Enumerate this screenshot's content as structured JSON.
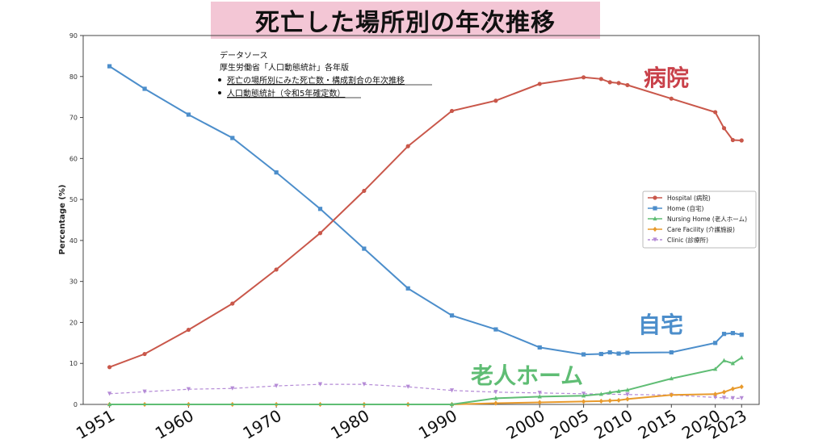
{
  "title": "死亡した場所別の年次推移",
  "source_note": {
    "heading": "データソース",
    "publisher": "厚生労働省「人口動態統計」各年版",
    "links": [
      "死亡の場所別にみた死亡数・構成割合の年次推移",
      "人口動態統計（令和5年確定数）"
    ]
  },
  "callouts": {
    "hospital": "病院",
    "home": "自宅",
    "nursing_home": "老人ホーム"
  },
  "chart_data": {
    "type": "line",
    "title": "死亡した場所別の年次推移",
    "xlabel": "",
    "ylabel": "Percentage (%)",
    "ylim": [
      0,
      90
    ],
    "xlim": [
      1948,
      2025
    ],
    "yticks": [
      0,
      10,
      20,
      30,
      40,
      50,
      60,
      70,
      80,
      90
    ],
    "xticks": [
      1951,
      1960,
      1970,
      1980,
      1990,
      2000,
      2005,
      2010,
      2015,
      2020,
      2023
    ],
    "grid": false,
    "legend_position": "right",
    "series": [
      {
        "name": "Hospital (病院)",
        "color": "#c9574a",
        "marker": "circle",
        "dashed": false,
        "points": [
          [
            1951,
            9.1
          ],
          [
            1955,
            12.3
          ],
          [
            1960,
            18.2
          ],
          [
            1965,
            24.6
          ],
          [
            1970,
            32.9
          ],
          [
            1975,
            41.8
          ],
          [
            1980,
            52.1
          ],
          [
            1985,
            63.0
          ],
          [
            1990,
            71.6
          ],
          [
            1995,
            74.1
          ],
          [
            2000,
            78.2
          ],
          [
            2005,
            79.8
          ],
          [
            2007,
            79.4
          ],
          [
            2008,
            78.6
          ],
          [
            2009,
            78.4
          ],
          [
            2010,
            77.9
          ],
          [
            2015,
            74.6
          ],
          [
            2020,
            71.3
          ],
          [
            2021,
            67.4
          ],
          [
            2022,
            64.5
          ],
          [
            2023,
            64.4
          ]
        ]
      },
      {
        "name": "Home (自宅)",
        "color": "#4c8ecb",
        "marker": "square",
        "dashed": false,
        "points": [
          [
            1951,
            82.5
          ],
          [
            1955,
            77.0
          ],
          [
            1960,
            70.7
          ],
          [
            1965,
            65.0
          ],
          [
            1970,
            56.6
          ],
          [
            1975,
            47.7
          ],
          [
            1980,
            38.0
          ],
          [
            1985,
            28.3
          ],
          [
            1990,
            21.7
          ],
          [
            1995,
            18.3
          ],
          [
            2000,
            13.9
          ],
          [
            2005,
            12.2
          ],
          [
            2007,
            12.3
          ],
          [
            2008,
            12.7
          ],
          [
            2009,
            12.4
          ],
          [
            2010,
            12.6
          ],
          [
            2015,
            12.7
          ],
          [
            2020,
            15.0
          ],
          [
            2021,
            17.2
          ],
          [
            2022,
            17.4
          ],
          [
            2023,
            17.0
          ]
        ]
      },
      {
        "name": "Nursing Home (老人ホーム)",
        "color": "#5fbd74",
        "marker": "triangle",
        "dashed": false,
        "points": [
          [
            1951,
            0
          ],
          [
            1990,
            0
          ],
          [
            1995,
            1.5
          ],
          [
            2000,
            1.9
          ],
          [
            2005,
            2.1
          ],
          [
            2007,
            2.5
          ],
          [
            2008,
            2.9
          ],
          [
            2009,
            3.2
          ],
          [
            2010,
            3.5
          ],
          [
            2015,
            6.3
          ],
          [
            2020,
            8.6
          ],
          [
            2021,
            10.7
          ],
          [
            2022,
            10.0
          ],
          [
            2023,
            11.4
          ]
        ]
      },
      {
        "name": "Care Facility (介護施設)",
        "color": "#e89a2c",
        "marker": "diamond",
        "dashed": false,
        "points": [
          [
            1951,
            0
          ],
          [
            1955,
            0
          ],
          [
            1960,
            0
          ],
          [
            1965,
            0
          ],
          [
            1970,
            0
          ],
          [
            1975,
            0
          ],
          [
            1980,
            0
          ],
          [
            1985,
            0
          ],
          [
            1990,
            0
          ],
          [
            1995,
            0.3
          ],
          [
            2000,
            0.5
          ],
          [
            2005,
            0.7
          ],
          [
            2007,
            0.8
          ],
          [
            2008,
            0.9
          ],
          [
            2009,
            1.0
          ],
          [
            2010,
            1.3
          ],
          [
            2015,
            2.3
          ],
          [
            2020,
            2.5
          ],
          [
            2021,
            3.0
          ],
          [
            2022,
            3.8
          ],
          [
            2023,
            4.3
          ]
        ]
      },
      {
        "name": "Clinic (診療所)",
        "color": "#b48ad6",
        "marker": "triangle-down",
        "dashed": true,
        "points": [
          [
            1951,
            2.6
          ],
          [
            1955,
            3.1
          ],
          [
            1960,
            3.7
          ],
          [
            1965,
            3.9
          ],
          [
            1970,
            4.5
          ],
          [
            1975,
            4.9
          ],
          [
            1980,
            4.9
          ],
          [
            1985,
            4.3
          ],
          [
            1990,
            3.4
          ],
          [
            1995,
            3.0
          ],
          [
            2000,
            2.8
          ],
          [
            2005,
            2.6
          ],
          [
            2010,
            2.4
          ],
          [
            2015,
            2.3
          ],
          [
            2020,
            1.7
          ],
          [
            2021,
            1.6
          ],
          [
            2022,
            1.5
          ],
          [
            2023,
            1.5
          ]
        ]
      }
    ]
  }
}
